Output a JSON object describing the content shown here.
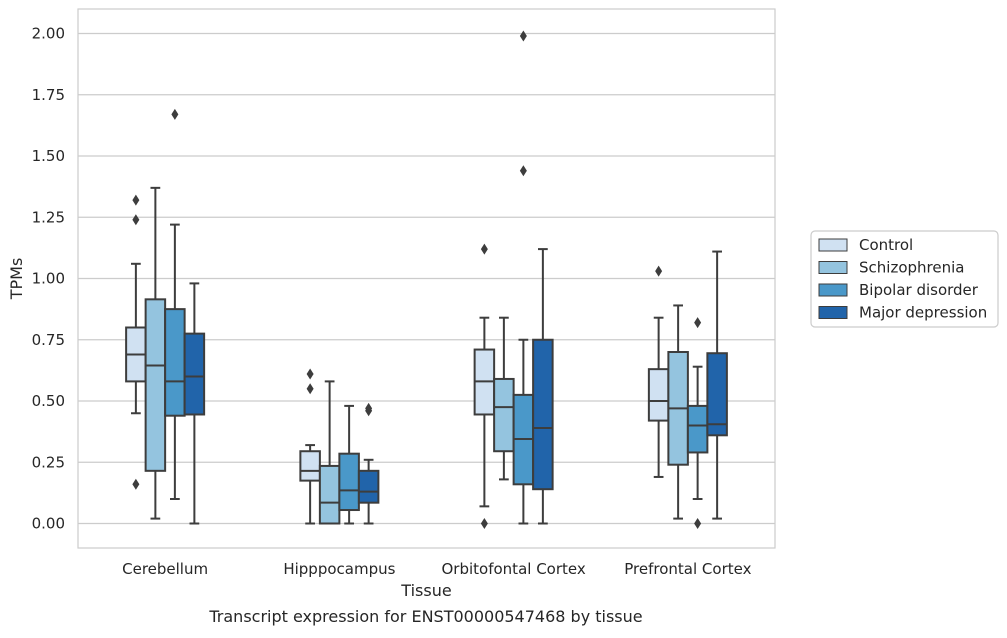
{
  "chart_data": {
    "type": "box",
    "xlabel": "Tissue",
    "ylabel": "TPMs",
    "caption": "Transcript expression for ENST00000547468 by tissue",
    "ylim": [
      -0.1,
      2.1
    ],
    "yticks": [
      "0.00",
      "0.25",
      "0.50",
      "0.75",
      "1.00",
      "1.25",
      "1.50",
      "1.75",
      "2.00"
    ],
    "grid": "horizontal",
    "legend_position": "right",
    "categories": [
      "Cerebellum",
      "Hipppocampus",
      "Orbitofontal Cortex",
      "Prefrontal Cortex"
    ],
    "series": [
      {
        "name": "Control",
        "color": "#d0e1f2",
        "boxes": [
          {
            "whislo": 0.45,
            "q1": 0.58,
            "med": 0.69,
            "q3": 0.8,
            "whishi": 1.06,
            "fliers": [
              0.16,
              1.24,
              1.32
            ]
          },
          {
            "whislo": 0.0,
            "q1": 0.175,
            "med": 0.215,
            "q3": 0.295,
            "whishi": 0.32,
            "fliers": [
              0.55,
              0.61
            ]
          },
          {
            "whislo": 0.07,
            "q1": 0.445,
            "med": 0.58,
            "q3": 0.71,
            "whishi": 0.84,
            "fliers": [
              0.0,
              1.12
            ]
          },
          {
            "whislo": 0.19,
            "q1": 0.42,
            "med": 0.5,
            "q3": 0.63,
            "whishi": 0.84,
            "fliers": [
              1.03
            ]
          }
        ]
      },
      {
        "name": "Schizophrenia",
        "color": "#94c4df",
        "boxes": [
          {
            "whislo": 0.02,
            "q1": 0.215,
            "med": 0.645,
            "q3": 0.915,
            "whishi": 1.37,
            "fliers": []
          },
          {
            "whislo": 0.0,
            "q1": 0.0,
            "med": 0.085,
            "q3": 0.235,
            "whishi": 0.58,
            "fliers": []
          },
          {
            "whislo": 0.18,
            "q1": 0.295,
            "med": 0.475,
            "q3": 0.59,
            "whishi": 0.84,
            "fliers": []
          },
          {
            "whislo": 0.02,
            "q1": 0.24,
            "med": 0.47,
            "q3": 0.7,
            "whishi": 0.89,
            "fliers": []
          }
        ]
      },
      {
        "name": "Bipolar disorder",
        "color": "#4a98c9",
        "boxes": [
          {
            "whislo": 0.1,
            "q1": 0.44,
            "med": 0.58,
            "q3": 0.875,
            "whishi": 1.22,
            "fliers": [
              1.67
            ]
          },
          {
            "whislo": 0.0,
            "q1": 0.055,
            "med": 0.135,
            "q3": 0.285,
            "whishi": 0.48,
            "fliers": []
          },
          {
            "whislo": 0.0,
            "q1": 0.16,
            "med": 0.345,
            "q3": 0.525,
            "whishi": 0.75,
            "fliers": [
              1.44,
              1.99
            ]
          },
          {
            "whislo": 0.1,
            "q1": 0.29,
            "med": 0.4,
            "q3": 0.48,
            "whishi": 0.64,
            "fliers": [
              0.0,
              0.82
            ]
          }
        ]
      },
      {
        "name": "Major depression",
        "color": "#2164aa",
        "boxes": [
          {
            "whislo": 0.0,
            "q1": 0.445,
            "med": 0.6,
            "q3": 0.775,
            "whishi": 0.98,
            "fliers": []
          },
          {
            "whislo": 0.0,
            "q1": 0.085,
            "med": 0.13,
            "q3": 0.215,
            "whishi": 0.26,
            "fliers": [
              0.46,
              0.47
            ]
          },
          {
            "whislo": 0.0,
            "q1": 0.14,
            "med": 0.39,
            "q3": 0.75,
            "whishi": 1.12,
            "fliers": []
          },
          {
            "whislo": 0.02,
            "q1": 0.36,
            "med": 0.405,
            "q3": 0.695,
            "whishi": 1.11,
            "fliers": []
          }
        ]
      }
    ]
  }
}
